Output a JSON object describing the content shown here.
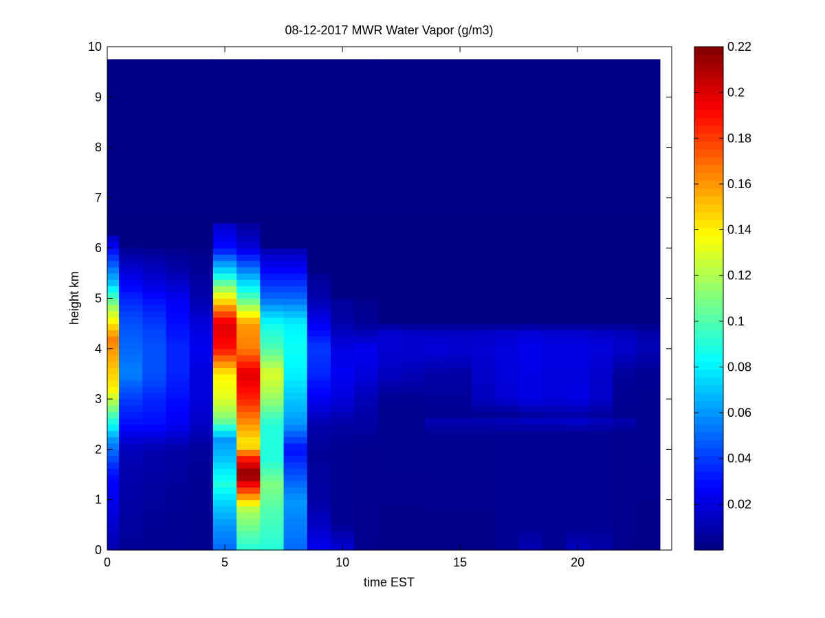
{
  "chart_data": {
    "type": "heatmap",
    "title": "08-12-2017 MWR Water Vapor (g/m3)",
    "xlabel": "time EST",
    "ylabel": "height km",
    "xlim": [
      0,
      24
    ],
    "ylim": [
      0,
      10
    ],
    "x_ticks": [
      0,
      5,
      10,
      15,
      20
    ],
    "y_ticks": [
      0,
      1,
      2,
      3,
      4,
      5,
      6,
      7,
      8,
      9,
      10
    ],
    "colorbar": {
      "range": [
        0,
        0.22
      ],
      "ticks": [
        0.02,
        0.04,
        0.06,
        0.08,
        0.1,
        0.12,
        0.14,
        0.16,
        0.18,
        0.2,
        0.22
      ],
      "colormap": "jet"
    },
    "data_extent": {
      "x": [
        0,
        23.5
      ],
      "y": [
        0,
        9.75
      ]
    },
    "time_columns": [
      0,
      1,
      2,
      3,
      4,
      5,
      6,
      7,
      8,
      9,
      10,
      11,
      12,
      13,
      14,
      15,
      16,
      17,
      18,
      19,
      20,
      21,
      22,
      23
    ],
    "column_profiles": [
      {
        "t": 0,
        "pts": [
          [
            0,
            0.01
          ],
          [
            1.5,
            0.03
          ],
          [
            2.2,
            0.06
          ],
          [
            2.7,
            0.1
          ],
          [
            3.2,
            0.14
          ],
          [
            3.6,
            0.15
          ],
          [
            4.2,
            0.165
          ],
          [
            4.8,
            0.12
          ],
          [
            5.3,
            0.07
          ],
          [
            5.8,
            0.04
          ],
          [
            6.3,
            0.01
          ]
        ]
      },
      {
        "t": 1,
        "pts": [
          [
            0,
            0.005
          ],
          [
            1,
            0.008
          ],
          [
            2,
            0.012
          ],
          [
            2.5,
            0.03
          ],
          [
            3,
            0.04
          ],
          [
            3.5,
            0.055
          ],
          [
            4,
            0.05
          ],
          [
            4.5,
            0.045
          ],
          [
            5,
            0.035
          ],
          [
            5.5,
            0.02
          ],
          [
            6,
            0.005
          ]
        ]
      },
      {
        "t": 2,
        "pts": [
          [
            0,
            0.004
          ],
          [
            1,
            0.006
          ],
          [
            2,
            0.01
          ],
          [
            2.5,
            0.03
          ],
          [
            3,
            0.035
          ],
          [
            3.5,
            0.045
          ],
          [
            4,
            0.045
          ],
          [
            4.5,
            0.04
          ],
          [
            5,
            0.03
          ],
          [
            5.5,
            0.015
          ],
          [
            6,
            0.004
          ]
        ]
      },
      {
        "t": 3,
        "pts": [
          [
            0,
            0.004
          ],
          [
            1,
            0.005
          ],
          [
            2,
            0.008
          ],
          [
            2.5,
            0.025
          ],
          [
            3,
            0.03
          ],
          [
            3.5,
            0.035
          ],
          [
            4,
            0.035
          ],
          [
            4.5,
            0.03
          ],
          [
            5,
            0.025
          ],
          [
            5.5,
            0.01
          ],
          [
            6,
            0.003
          ]
        ]
      },
      {
        "t": 4,
        "pts": [
          [
            0,
            0.003
          ],
          [
            1,
            0.004
          ],
          [
            2,
            0.006
          ],
          [
            2.5,
            0.015
          ],
          [
            3,
            0.02
          ],
          [
            3.5,
            0.02
          ],
          [
            4,
            0.025
          ],
          [
            4.5,
            0.02
          ],
          [
            5,
            0.01
          ],
          [
            6,
            0.002
          ]
        ]
      },
      {
        "t": 5,
        "pts": [
          [
            0,
            0.05
          ],
          [
            0.5,
            0.06
          ],
          [
            1,
            0.075
          ],
          [
            1.3,
            0.09
          ],
          [
            1.8,
            0.07
          ],
          [
            2.2,
            0.06
          ],
          [
            2.6,
            0.11
          ],
          [
            3,
            0.13
          ],
          [
            3.5,
            0.14
          ],
          [
            4,
            0.19
          ],
          [
            4.5,
            0.2
          ],
          [
            5,
            0.14
          ],
          [
            5.5,
            0.08
          ],
          [
            6,
            0.03
          ],
          [
            6.5,
            0.015
          ]
        ]
      },
      {
        "t": 6,
        "pts": [
          [
            0,
            0.09
          ],
          [
            0.3,
            0.1
          ],
          [
            0.8,
            0.12
          ],
          [
            1.2,
            0.18
          ],
          [
            1.5,
            0.22
          ],
          [
            1.8,
            0.19
          ],
          [
            2.1,
            0.14
          ],
          [
            2.5,
            0.16
          ],
          [
            3,
            0.185
          ],
          [
            3.5,
            0.2
          ],
          [
            4,
            0.165
          ],
          [
            4.5,
            0.16
          ],
          [
            5,
            0.1
          ],
          [
            5.5,
            0.06
          ],
          [
            6,
            0.02
          ],
          [
            6.5,
            0.005
          ]
        ]
      },
      {
        "t": 7,
        "pts": [
          [
            0,
            0.09
          ],
          [
            0.8,
            0.1
          ],
          [
            1.3,
            0.11
          ],
          [
            1.8,
            0.09
          ],
          [
            2.5,
            0.09
          ],
          [
            3,
            0.115
          ],
          [
            3.5,
            0.13
          ],
          [
            4,
            0.1
          ],
          [
            4.5,
            0.085
          ],
          [
            5,
            0.05
          ],
          [
            5.5,
            0.03
          ],
          [
            6,
            0.01
          ]
        ]
      },
      {
        "t": 8,
        "pts": [
          [
            0,
            0.05
          ],
          [
            0.5,
            0.055
          ],
          [
            1,
            0.06
          ],
          [
            1.5,
            0.045
          ],
          [
            2,
            0.03
          ],
          [
            2.5,
            0.06
          ],
          [
            3,
            0.07
          ],
          [
            3.5,
            0.08
          ],
          [
            4,
            0.085
          ],
          [
            4.5,
            0.08
          ],
          [
            5,
            0.05
          ],
          [
            5.5,
            0.03
          ],
          [
            6,
            0.01
          ]
        ]
      },
      {
        "t": 9,
        "pts": [
          [
            0,
            0.025
          ],
          [
            0.5,
            0.015
          ],
          [
            1,
            0.008
          ],
          [
            2,
            0.005
          ],
          [
            2.5,
            0.01
          ],
          [
            3,
            0.025
          ],
          [
            3.5,
            0.035
          ],
          [
            4,
            0.04
          ],
          [
            4.5,
            0.025
          ],
          [
            5,
            0.01
          ],
          [
            5.5,
            0.004
          ]
        ]
      },
      {
        "t": 10,
        "pts": [
          [
            0,
            0.02
          ],
          [
            0.5,
            0.005
          ],
          [
            1,
            0.004
          ],
          [
            2,
            0.004
          ],
          [
            2.5,
            0.008
          ],
          [
            3,
            0.02
          ],
          [
            3.5,
            0.025
          ],
          [
            4,
            0.022
          ],
          [
            4.5,
            0.01
          ],
          [
            5,
            0.005
          ]
        ]
      },
      {
        "t": 11,
        "pts": [
          [
            0,
            0.003
          ],
          [
            2,
            0.003
          ],
          [
            3,
            0.012
          ],
          [
            3.5,
            0.02
          ],
          [
            4,
            0.025
          ],
          [
            4.5,
            0.005
          ],
          [
            5,
            0.003
          ]
        ]
      },
      {
        "t": 12,
        "pts": [
          [
            0,
            0.002
          ],
          [
            3,
            0.004
          ],
          [
            3.5,
            0.014
          ],
          [
            4,
            0.018
          ],
          [
            4.3,
            0.018
          ],
          [
            4.5,
            0.004
          ]
        ]
      },
      {
        "t": 13,
        "pts": [
          [
            0,
            0.002
          ],
          [
            3,
            0.004
          ],
          [
            3.5,
            0.012
          ],
          [
            4,
            0.018
          ],
          [
            4.3,
            0.016
          ],
          [
            4.5,
            0.003
          ]
        ]
      },
      {
        "t": 14,
        "pts": [
          [
            0,
            0.002
          ],
          [
            2.4,
            0.004
          ],
          [
            2.5,
            0.014
          ],
          [
            2.7,
            0.004
          ],
          [
            3.5,
            0.008
          ],
          [
            4,
            0.02
          ],
          [
            4.3,
            0.015
          ],
          [
            4.5,
            0.003
          ]
        ]
      },
      {
        "t": 15,
        "pts": [
          [
            0,
            0.002
          ],
          [
            2.4,
            0.004
          ],
          [
            2.5,
            0.014
          ],
          [
            2.7,
            0.004
          ],
          [
            3.5,
            0.008
          ],
          [
            4,
            0.018
          ],
          [
            4.3,
            0.015
          ],
          [
            4.5,
            0.003
          ]
        ]
      },
      {
        "t": 16,
        "pts": [
          [
            0,
            0.002
          ],
          [
            2.4,
            0.004
          ],
          [
            2.5,
            0.015
          ],
          [
            2.7,
            0.004
          ],
          [
            3,
            0.014
          ],
          [
            3.5,
            0.016
          ],
          [
            4,
            0.018
          ],
          [
            4.3,
            0.016
          ],
          [
            4.5,
            0.003
          ]
        ]
      },
      {
        "t": 17,
        "pts": [
          [
            0,
            0.004
          ],
          [
            2.4,
            0.004
          ],
          [
            2.5,
            0.016
          ],
          [
            2.7,
            0.004
          ],
          [
            3,
            0.018
          ],
          [
            3.5,
            0.02
          ],
          [
            4,
            0.02
          ],
          [
            4.3,
            0.018
          ],
          [
            4.5,
            0.003
          ]
        ]
      },
      {
        "t": 18,
        "pts": [
          [
            0,
            0.012
          ],
          [
            0.5,
            0.004
          ],
          [
            2.4,
            0.004
          ],
          [
            2.5,
            0.018
          ],
          [
            2.7,
            0.006
          ],
          [
            3,
            0.022
          ],
          [
            3.5,
            0.022
          ],
          [
            4,
            0.024
          ],
          [
            4.3,
            0.02
          ],
          [
            4.5,
            0.003
          ]
        ]
      },
      {
        "t": 19,
        "pts": [
          [
            0,
            0.004
          ],
          [
            2.4,
            0.004
          ],
          [
            2.5,
            0.018
          ],
          [
            2.7,
            0.008
          ],
          [
            3,
            0.02
          ],
          [
            3.5,
            0.02
          ],
          [
            4,
            0.022
          ],
          [
            4.3,
            0.018
          ],
          [
            4.5,
            0.003
          ]
        ]
      },
      {
        "t": 20,
        "pts": [
          [
            0,
            0.014
          ],
          [
            0.5,
            0.004
          ],
          [
            2.4,
            0.004
          ],
          [
            2.5,
            0.02
          ],
          [
            2.7,
            0.008
          ],
          [
            3,
            0.022
          ],
          [
            3.5,
            0.02
          ],
          [
            4,
            0.022
          ],
          [
            4.3,
            0.018
          ],
          [
            4.5,
            0.003
          ]
        ]
      },
      {
        "t": 21,
        "pts": [
          [
            0,
            0.01
          ],
          [
            0.5,
            0.004
          ],
          [
            2.4,
            0.004
          ],
          [
            2.5,
            0.016
          ],
          [
            2.7,
            0.006
          ],
          [
            3,
            0.016
          ],
          [
            3.5,
            0.016
          ],
          [
            4,
            0.02
          ],
          [
            4.3,
            0.016
          ],
          [
            4.5,
            0.003
          ]
        ]
      },
      {
        "t": 22,
        "pts": [
          [
            0,
            0.003
          ],
          [
            2.4,
            0.003
          ],
          [
            2.5,
            0.012
          ],
          [
            2.7,
            0.003
          ],
          [
            3.5,
            0.006
          ],
          [
            4,
            0.016
          ],
          [
            4.3,
            0.014
          ],
          [
            4.5,
            0.003
          ]
        ]
      },
      {
        "t": 23,
        "pts": [
          [
            0,
            0.002
          ],
          [
            3.5,
            0.004
          ],
          [
            4,
            0.012
          ],
          [
            4.3,
            0.01
          ],
          [
            4.5,
            0.002
          ]
        ]
      }
    ]
  }
}
